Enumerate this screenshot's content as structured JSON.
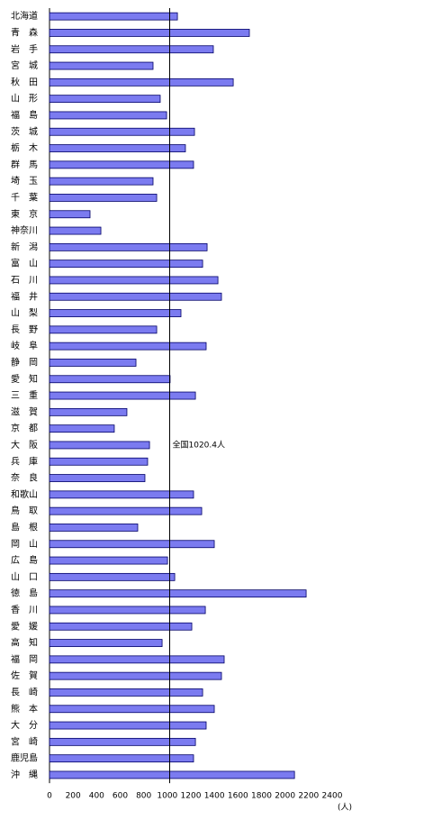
{
  "chart_data": {
    "type": "barh",
    "categories": [
      "北海道",
      "青　森",
      "岩　手",
      "宮　城",
      "秋　田",
      "山　形",
      "福　島",
      "茨　城",
      "栃　木",
      "群　馬",
      "埼　玉",
      "千　葉",
      "東　京",
      "神奈川",
      "新　潟",
      "富　山",
      "石　川",
      "福　井",
      "山　梨",
      "長　野",
      "岐　阜",
      "静　岡",
      "愛　知",
      "三　重",
      "滋　賀",
      "京　都",
      "大　阪",
      "兵　庫",
      "奈　良",
      "和歌山",
      "鳥　取",
      "島　根",
      "岡　山",
      "広　島",
      "山　口",
      "徳　島",
      "香　川",
      "愛　媛",
      "高　知",
      "福　岡",
      "佐　賀",
      "長　崎",
      "熊　本",
      "大　分",
      "宮　崎",
      "鹿児島",
      "沖　縄"
    ],
    "values": [
      1086,
      1697,
      1391,
      879,
      1560,
      940,
      994,
      1231,
      1154,
      1223,
      879,
      910,
      344,
      436,
      1338,
      1300,
      1430,
      1460,
      1116,
      910,
      1330,
      734,
      1024,
      1239,
      657,
      550,
      849,
      833,
      810,
      1223,
      1292,
      749,
      1399,
      1002,
      1063,
      2179,
      1323,
      1208,
      956,
      1483,
      1460,
      1300,
      1399,
      1330,
      1239,
      1223,
      2080
    ],
    "color": "#7b7bf0",
    "xlim": [
      0,
      2400
    ],
    "xticks": [
      0,
      200,
      400,
      600,
      800,
      1000,
      1200,
      1400,
      1600,
      1800,
      2000,
      2200,
      2400
    ],
    "x_unit": "(人)",
    "reference": {
      "value": 1020.4,
      "label": "全国1020.4人"
    }
  }
}
